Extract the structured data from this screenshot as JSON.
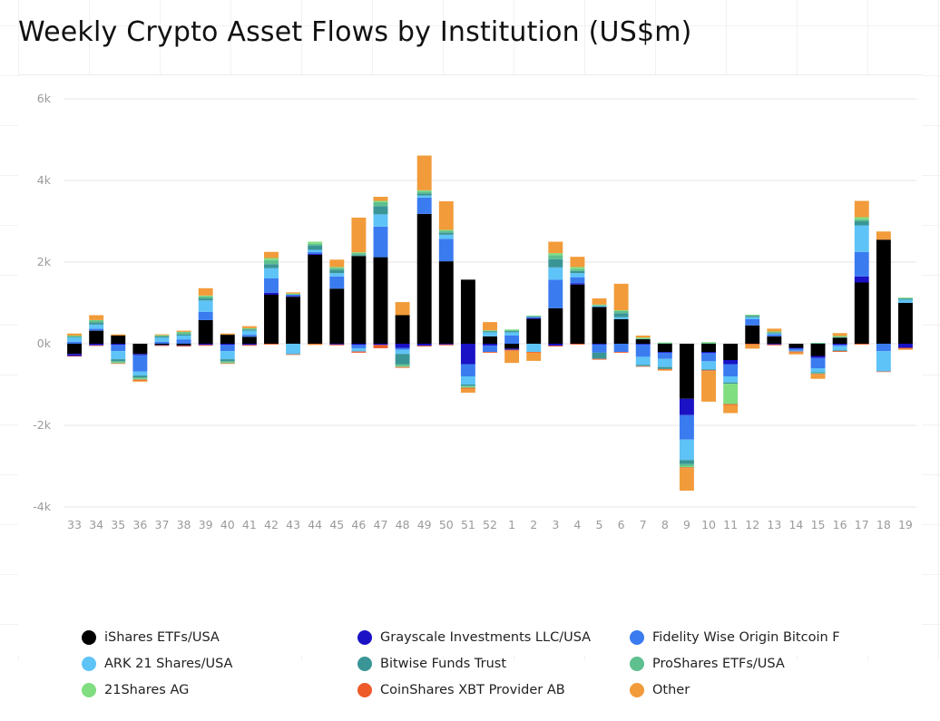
{
  "title": "Weekly Crypto Asset Flows by Institution (US$m)",
  "chart_data": {
    "type": "bar",
    "stacked": true,
    "title": "Weekly Crypto Asset Flows by Institution (US$m)",
    "xlabel": "",
    "ylabel": "",
    "ylim": [
      -4000,
      6000
    ],
    "yticks": [
      -4000,
      -2000,
      0,
      2000,
      4000,
      6000
    ],
    "ytick_labels": [
      "-4k",
      "-2k",
      "0k",
      "2k",
      "4k",
      "6k"
    ],
    "grid": true,
    "legend_position": "bottom",
    "categories": [
      "33",
      "34",
      "35",
      "36",
      "37",
      "38",
      "39",
      "40",
      "41",
      "42",
      "43",
      "44",
      "45",
      "46",
      "47",
      "48",
      "49",
      "50",
      "51",
      "52",
      "1",
      "2",
      "3",
      "4",
      "5",
      "6",
      "7",
      "8",
      "9",
      "10",
      "11",
      "12",
      "13",
      "14",
      "15",
      "16",
      "17",
      "18",
      "19"
    ],
    "series": [
      {
        "name": "iShares ETFs/USA",
        "color": "#000000",
        "values": [
          -250,
          320,
          200,
          -250,
          -30,
          -40,
          580,
          220,
          170,
          1200,
          1150,
          2180,
          1350,
          2150,
          2120,
          700,
          3180,
          2020,
          1570,
          180,
          -120,
          610,
          870,
          1450,
          900,
          600,
          110,
          -200,
          -1350,
          -200,
          -400,
          450,
          180,
          -100,
          -300,
          150,
          1500,
          2550,
          1000
        ]
      },
      {
        "name": "Grayscale Investments LLC/USA",
        "color": "#1a12c4",
        "values": [
          -50,
          -40,
          -30,
          -30,
          -10,
          -10,
          -30,
          -30,
          -30,
          50,
          20,
          20,
          -20,
          -30,
          -30,
          -100,
          -50,
          -20,
          -500,
          -50,
          -30,
          20,
          -50,
          30,
          -20,
          0,
          -20,
          -20,
          -400,
          -30,
          -100,
          0,
          -20,
          -20,
          -50,
          -30,
          150,
          0,
          -100
        ]
      },
      {
        "name": "Fidelity Wise Origin Bitcoin F",
        "color": "#3a7bf0",
        "values": [
          50,
          50,
          -150,
          -400,
          50,
          100,
          200,
          -150,
          50,
          350,
          30,
          50,
          300,
          -80,
          750,
          -50,
          400,
          550,
          -300,
          -150,
          200,
          30,
          700,
          150,
          -200,
          -200,
          -300,
          -150,
          -600,
          -200,
          -300,
          150,
          50,
          -50,
          -250,
          -30,
          600,
          -180,
          0
        ]
      },
      {
        "name": "ARK 21 Shares/USA",
        "color": "#5ec3f6",
        "values": [
          100,
          100,
          -200,
          -100,
          100,
          100,
          280,
          -200,
          100,
          250,
          -250,
          50,
          80,
          -80,
          300,
          -100,
          50,
          100,
          -200,
          100,
          80,
          -200,
          300,
          100,
          30,
          50,
          -200,
          -200,
          -500,
          -200,
          -150,
          50,
          20,
          -20,
          -100,
          -100,
          650,
          -500,
          80
        ]
      },
      {
        "name": "Bitwise Funds Trust",
        "color": "#3a9596",
        "values": [
          20,
          50,
          -50,
          -50,
          30,
          30,
          50,
          -50,
          30,
          100,
          -10,
          100,
          80,
          20,
          200,
          -250,
          50,
          50,
          -30,
          20,
          30,
          0,
          200,
          50,
          -150,
          100,
          -30,
          -50,
          -100,
          -20,
          -30,
          30,
          20,
          0,
          -20,
          -20,
          100,
          0,
          20
        ]
      },
      {
        "name": "ProShares ETFs/USA",
        "color": "#5ebf8f",
        "values": [
          20,
          50,
          -30,
          -30,
          20,
          50,
          50,
          -30,
          20,
          100,
          20,
          50,
          50,
          50,
          100,
          -50,
          50,
          50,
          -30,
          20,
          20,
          20,
          100,
          50,
          20,
          50,
          20,
          20,
          -50,
          20,
          0,
          20,
          20,
          0,
          20,
          20,
          50,
          0,
          20
        ]
      },
      {
        "name": "21Shares AG",
        "color": "#80dd80",
        "values": [
          10,
          10,
          -20,
          -20,
          10,
          10,
          20,
          -20,
          10,
          50,
          10,
          50,
          20,
          20,
          30,
          -20,
          30,
          20,
          -20,
          10,
          20,
          10,
          50,
          50,
          10,
          20,
          20,
          10,
          -30,
          20,
          -500,
          10,
          10,
          0,
          -20,
          20,
          50,
          0,
          10
        ]
      },
      {
        "name": "CoinShares XBT Provider AB",
        "color": "#ee5a2a",
        "values": [
          -10,
          -10,
          -10,
          -20,
          -10,
          -20,
          -20,
          -10,
          -20,
          -20,
          -10,
          -10,
          -20,
          -30,
          -80,
          -20,
          -20,
          -20,
          -20,
          -20,
          -20,
          -20,
          -20,
          -20,
          -20,
          -20,
          -10,
          -10,
          -20,
          -20,
          -20,
          -20,
          -20,
          -20,
          -20,
          -20,
          -20,
          -10,
          -20
        ]
      },
      {
        "name": "Other",
        "color": "#f29b3a",
        "values": [
          50,
          120,
          30,
          -30,
          20,
          30,
          180,
          30,
          50,
          150,
          30,
          -20,
          180,
          850,
          100,
          320,
          850,
          700,
          -100,
          200,
          -300,
          -200,
          280,
          250,
          150,
          650,
          50,
          -30,
          -550,
          -750,
          -200,
          -100,
          70,
          -50,
          -100,
          70,
          400,
          200,
          -30
        ]
      }
    ]
  }
}
